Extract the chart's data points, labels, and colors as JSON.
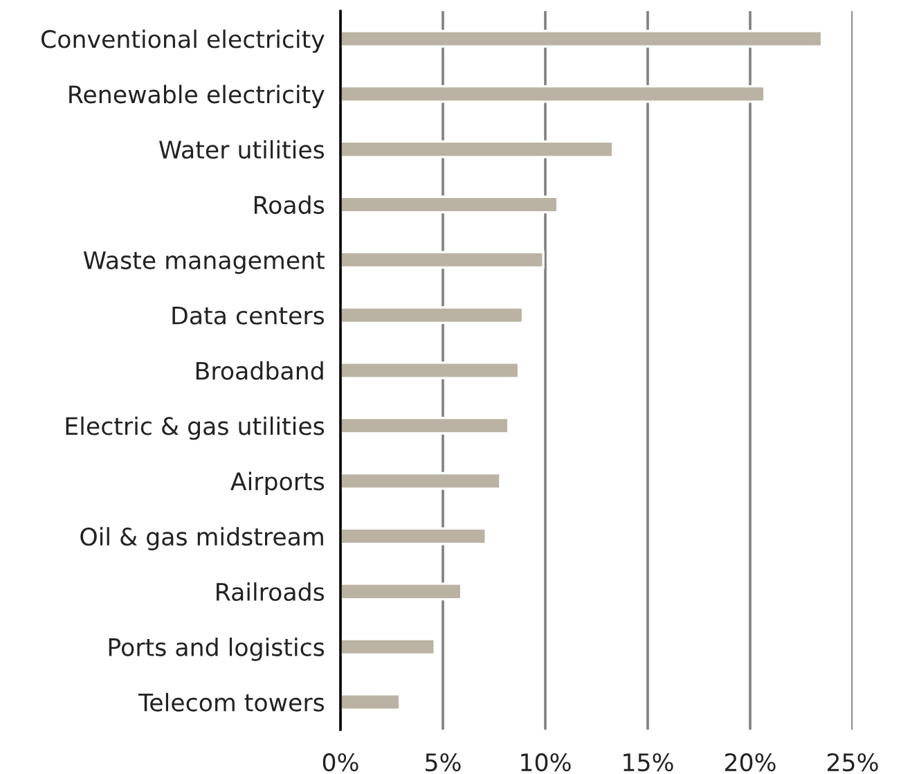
{
  "chart_data": {
    "type": "bar",
    "orientation": "horizontal",
    "categories": [
      "Conventional electricity",
      "Renewable electricity",
      "Water utilities",
      "Roads",
      "Waste management",
      "Data centers",
      "Broadband",
      "Electric & gas utilities",
      "Airports",
      "Oil & gas midstream",
      "Railroads",
      "Ports and logistics",
      "Telecom towers"
    ],
    "values": [
      23.5,
      20.7,
      13.3,
      10.6,
      9.9,
      8.9,
      8.7,
      8.2,
      7.8,
      7.1,
      5.9,
      4.6,
      2.9
    ],
    "color": "#bab3a3",
    "xlim": [
      0,
      25
    ],
    "xticks": [
      {
        "value": 0,
        "label": "0%"
      },
      {
        "value": 5,
        "label": "5%"
      },
      {
        "value": 10,
        "label": "10%"
      },
      {
        "value": 15,
        "label": "15%"
      },
      {
        "value": 20,
        "label": "20%"
      },
      {
        "value": 25,
        "label": "25%"
      }
    ],
    "grid": "x"
  }
}
